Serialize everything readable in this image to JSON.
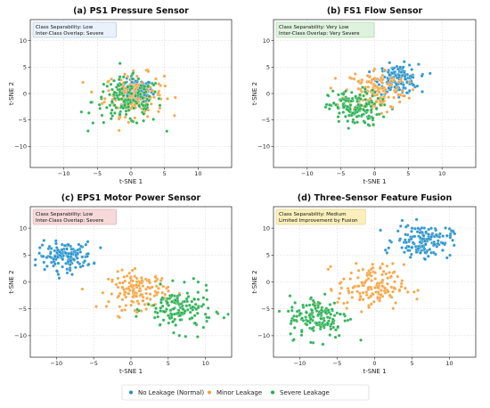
{
  "colors": {
    "no_leakage": "#1f8ec9",
    "minor_leakage": "#f5a03a",
    "severe_leakage": "#20ad4b"
  },
  "legend": {
    "placement": "bottom-center",
    "items": [
      "No Leakage (Normal)",
      "Minor Leakage",
      "Severe Leakage"
    ]
  },
  "chart_data": [
    {
      "type": "scatter",
      "title": "(a) PS1 Pressure Sensor",
      "xlabel": "t-SNE 1",
      "ylabel": "t-SNE 2",
      "xlim": [
        -15,
        15
      ],
      "ylim": [
        -14,
        14
      ],
      "xticks": [
        -10,
        -5,
        0,
        5,
        10
      ],
      "yticks": [
        -10,
        -5,
        0,
        5,
        10
      ],
      "grid": true,
      "annotation": {
        "lines": [
          "Class Separability: Low",
          "Inter-Class Overlap: Severe"
        ],
        "bg": "#e9f2fb",
        "border": "#9bb7d4"
      },
      "series": [
        {
          "name": "No Leakage (Normal)",
          "cx": 0.8,
          "cy": 0.5,
          "sx": 1.2,
          "sy": 1.1,
          "n": 150
        },
        {
          "name": "Minor Leakage",
          "cx": 0.5,
          "cy": -0.2,
          "sx": 2.2,
          "sy": 2.0,
          "n": 150
        },
        {
          "name": "Severe Leakage",
          "cx": -0.5,
          "cy": -1.5,
          "sx": 2.6,
          "sy": 2.2,
          "n": 150
        }
      ]
    },
    {
      "type": "scatter",
      "title": "(b) FS1 Flow Sensor",
      "xlabel": "t-SNE 1",
      "ylabel": "t-SNE 2",
      "xlim": [
        -15,
        15
      ],
      "ylim": [
        -14,
        14
      ],
      "xticks": [
        -10,
        -5,
        0,
        5,
        10
      ],
      "yticks": [
        -10,
        -5,
        0,
        5,
        10
      ],
      "grid": true,
      "annotation": {
        "lines": [
          "Class Separability: Very Low",
          "Inter-Class Overlap: Very Severe"
        ],
        "bg": "#dff2de",
        "border": "#8fcf8a"
      },
      "series": [
        {
          "name": "No Leakage (Normal)",
          "cx": 3.5,
          "cy": 2.7,
          "sx": 1.5,
          "sy": 1.4,
          "n": 150
        },
        {
          "name": "Minor Leakage",
          "cx": 0.2,
          "cy": 0.5,
          "sx": 2.3,
          "sy": 2.2,
          "n": 150
        },
        {
          "name": "Severe Leakage",
          "cx": -3.0,
          "cy": -2.8,
          "sx": 1.9,
          "sy": 1.7,
          "n": 150
        }
      ]
    },
    {
      "type": "scatter",
      "title": "(c) EPS1 Motor Power Sensor",
      "xlabel": "t-SNE 1",
      "ylabel": "t-SNE 2",
      "xlim": [
        -13.5,
        13.5
      ],
      "ylim": [
        -14,
        14
      ],
      "xticks": [
        -10,
        -5,
        0,
        5,
        10
      ],
      "yticks": [
        -10,
        -5,
        0,
        5,
        10
      ],
      "grid": true,
      "annotation": {
        "lines": [
          "Class Separability: Low",
          "Inter-Class Overlap: Severe"
        ],
        "bg": "#f6d9d9",
        "border": "#d99a9a"
      },
      "series": [
        {
          "name": "No Leakage (Normal)",
          "cx": -8.8,
          "cy": 4.8,
          "sx": 1.8,
          "sy": 1.3,
          "n": 150
        },
        {
          "name": "Minor Leakage",
          "cx": 1.0,
          "cy": -1.6,
          "sx": 2.0,
          "sy": 1.7,
          "n": 150
        },
        {
          "name": "Severe Leakage",
          "cx": 6.5,
          "cy": -5.2,
          "sx": 2.2,
          "sy": 2.0,
          "n": 150
        }
      ]
    },
    {
      "type": "scatter",
      "title": "(d) Three-Sensor Feature Fusion",
      "xlabel": "t-SNE 1",
      "ylabel": "t-SNE 2",
      "xlim": [
        -13.5,
        13.5
      ],
      "ylim": [
        -14,
        14
      ],
      "xticks": [
        -10,
        -5,
        0,
        5,
        10
      ],
      "yticks": [
        -10,
        -5,
        0,
        5,
        10
      ],
      "grid": true,
      "annotation": {
        "lines": [
          "Class Separability: Medium",
          "Limited Improvement by Fusion"
        ],
        "bg": "#fbf0bc",
        "border": "#d8c46a"
      },
      "series": [
        {
          "name": "No Leakage (Normal)",
          "cx": 6.5,
          "cy": 7.7,
          "sx": 1.9,
          "sy": 1.5,
          "n": 150
        },
        {
          "name": "Minor Leakage",
          "cx": -0.5,
          "cy": -1.0,
          "sx": 2.2,
          "sy": 2.1,
          "n": 150
        },
        {
          "name": "Severe Leakage",
          "cx": -7.5,
          "cy": -6.5,
          "sx": 2.0,
          "sy": 2.0,
          "n": 150
        }
      ]
    }
  ]
}
